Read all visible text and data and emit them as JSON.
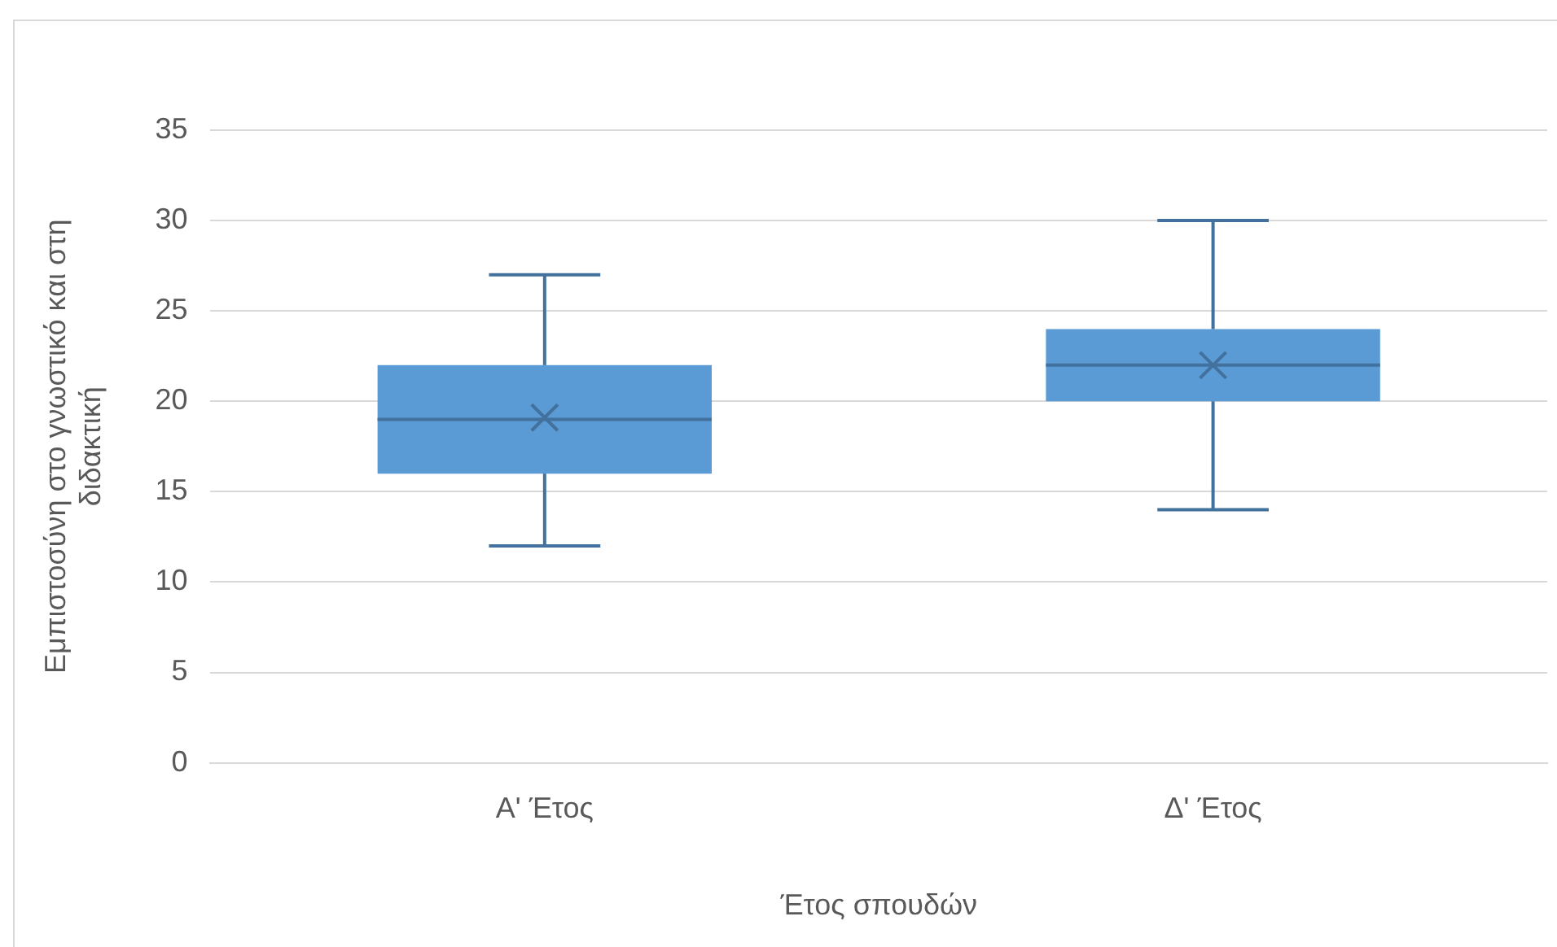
{
  "chart_data": {
    "type": "box",
    "xlabel": "Έτος σπουδών",
    "ylabel": "Εμπιστοσύνη στο γνωστικό και στη διδακτική",
    "categories": [
      "Α' Έτος",
      "Δ' Έτος"
    ],
    "boxes": [
      {
        "low": 12,
        "q1": 16,
        "median": 19,
        "q3": 22,
        "high": 27,
        "mean": 19.1
      },
      {
        "low": 14,
        "q1": 20,
        "median": 22,
        "q3": 24,
        "high": 30,
        "mean": 22
      }
    ],
    "color": "#5b9bd5",
    "ylim": [
      0,
      35
    ],
    "yticks": [
      0,
      5,
      10,
      15,
      20,
      25,
      30,
      35
    ],
    "grid": "y",
    "legend": false
  }
}
